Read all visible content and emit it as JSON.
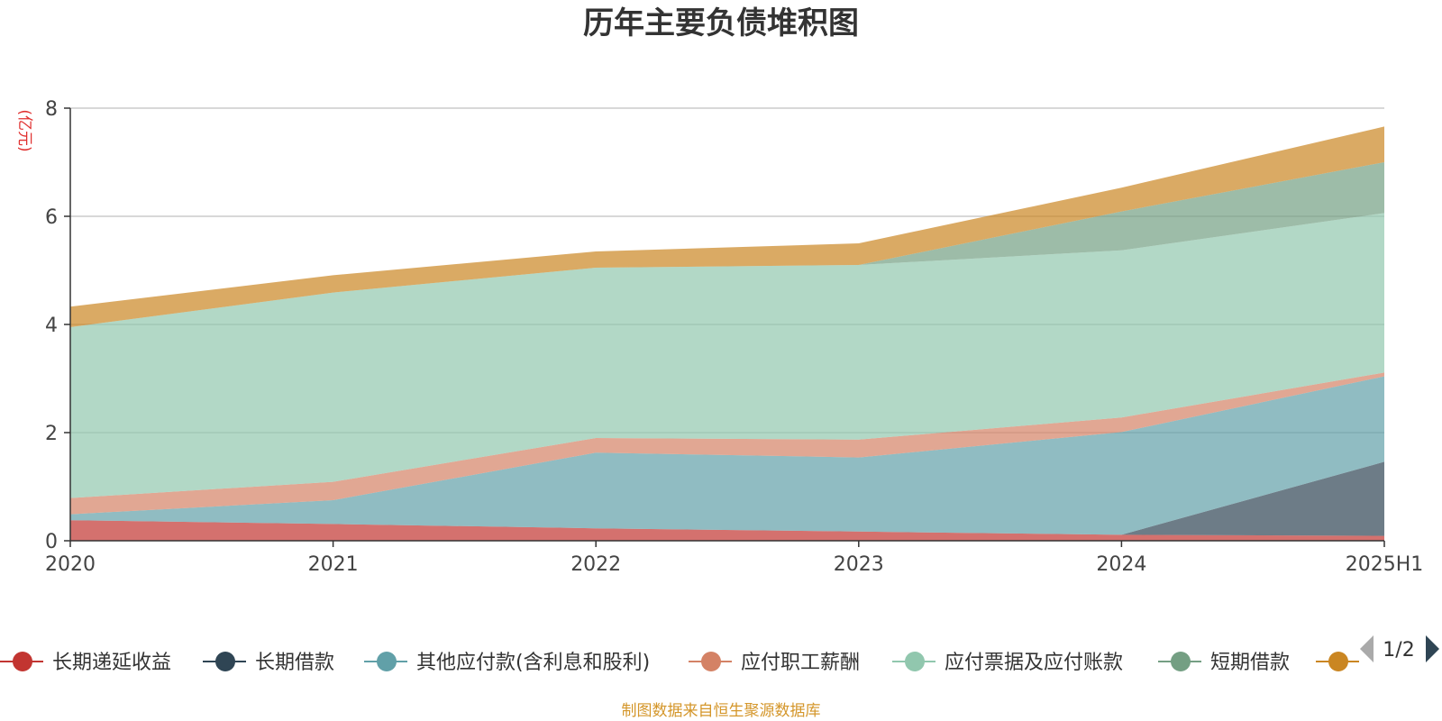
{
  "title": "历年主要负债堆积图",
  "unit_label": "(亿元)",
  "footer": "制图数据来自恒生聚源数据库",
  "colors": {
    "footer": "#d4962a",
    "unit": "#e0302f",
    "axis": "#333333",
    "grid": "#cccccc",
    "pager_active": "#2f4554",
    "pager_inactive": "#aaaaaa"
  },
  "legend": {
    "page_indicator": "1/2",
    "items": [
      {
        "label": "长期递延收益",
        "color": "#c23531",
        "icon": "circle-line-icon"
      },
      {
        "label": "长期借款",
        "color": "#2f4554",
        "icon": "circle-line-icon"
      },
      {
        "label": "其他应付款(含利息和股利)",
        "color": "#61a0a8",
        "icon": "circle-line-icon"
      },
      {
        "label": "应付职工薪酬",
        "color": "#d48265",
        "icon": "circle-line-icon"
      },
      {
        "label": "应付票据及应付账款",
        "color": "#91c7ae",
        "icon": "circle-line-icon"
      },
      {
        "label": "短期借款",
        "color": "#749f83",
        "icon": "circle-line-icon"
      },
      {
        "label": "",
        "color": "#ca8622",
        "icon": "circle-line-icon"
      }
    ]
  },
  "chart_data": {
    "type": "area",
    "stacked": true,
    "title": "历年主要负债堆积图",
    "ylabel": "(亿元)",
    "categories": [
      "2020",
      "2021",
      "2022",
      "2023",
      "2024",
      "2025H1"
    ],
    "ylim": [
      0,
      8
    ],
    "yticks": [
      0,
      2,
      4,
      6,
      8
    ],
    "grid": true,
    "legend_position": "bottom",
    "series": [
      {
        "name": "长期递延收益",
        "color": "#c23531",
        "values": [
          0.38,
          0.31,
          0.23,
          0.17,
          0.11,
          0.09
        ]
      },
      {
        "name": "长期借款",
        "color": "#2f4554",
        "values": [
          0,
          0,
          0,
          0,
          0,
          1.37
        ]
      },
      {
        "name": "其他应付款(含利息和股利)",
        "color": "#61a0a8",
        "values": [
          0.11,
          0.44,
          1.4,
          1.37,
          1.9,
          1.58
        ]
      },
      {
        "name": "应付职工薪酬",
        "color": "#d48265",
        "values": [
          0.3,
          0.34,
          0.27,
          0.33,
          0.27,
          0.07
        ]
      },
      {
        "name": "应付票据及应付账款",
        "color": "#91c7ae",
        "values": [
          3.16,
          3.5,
          3.15,
          3.23,
          3.09,
          2.95
        ]
      },
      {
        "name": "短期借款",
        "color": "#749f83",
        "values": [
          0,
          0,
          0,
          0,
          0.72,
          0.94
        ]
      },
      {
        "name": "",
        "color": "#ca8622",
        "values": [
          0.38,
          0.32,
          0.3,
          0.4,
          0.44,
          0.66
        ]
      }
    ]
  }
}
